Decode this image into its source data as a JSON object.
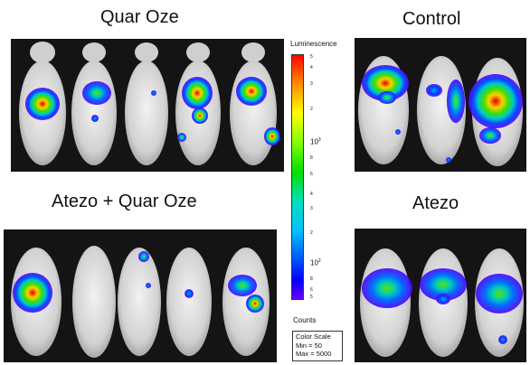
{
  "groups": {
    "quar_oze": {
      "title": "Quar Oze"
    },
    "control": {
      "title": "Control"
    },
    "atezo_quar_oze": {
      "title": "Atezo + Quar Oze"
    },
    "atezo": {
      "title": "Atezo"
    }
  },
  "scale": {
    "title": "Luminescence",
    "top_tick": "5",
    "ticks_upper": [
      "4",
      "3",
      "2"
    ],
    "decade_high": "10",
    "decade_high_exp": "3",
    "ticks_mid": [
      "8",
      "6",
      "4",
      "3",
      "2"
    ],
    "decade_low": "10",
    "decade_low_exp": "2",
    "ticks_low": [
      "8",
      "6"
    ],
    "bottom_tick": "5",
    "units": "Counts",
    "legend_title": "Color Scale",
    "min_label": "Min = 50",
    "max_label": "Max = 5000",
    "gradient_colors": [
      "#ff0000",
      "#ff8c00",
      "#ffff00",
      "#7fff00",
      "#00e000",
      "#00e0c0",
      "#00c0ff",
      "#0050ff",
      "#0000ff",
      "#6a00ff"
    ]
  }
}
